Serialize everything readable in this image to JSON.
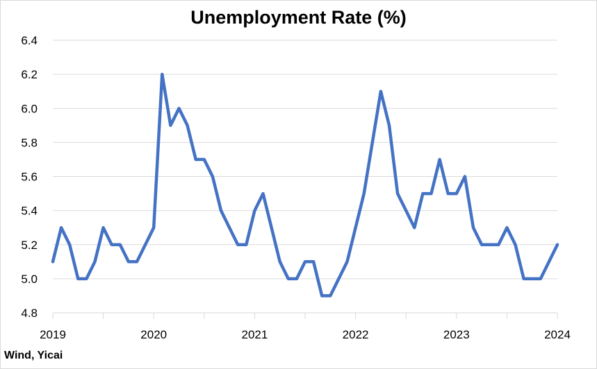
{
  "chart_data": {
    "type": "line",
    "title": "Unemployment Rate (%)",
    "source": "Wind, Yicai",
    "ylim": [
      4.8,
      6.4
    ],
    "yticks": [
      "4.8",
      "5.0",
      "5.2",
      "5.4",
      "5.6",
      "5.8",
      "6.0",
      "6.2",
      "6.4"
    ],
    "xticks": [
      "2019",
      "2020",
      "2021",
      "2022",
      "2023",
      "2024"
    ],
    "grid": "horizontal",
    "series": [
      {
        "color": "#4472c4",
        "x": [
          "2019-01",
          "2019-02",
          "2019-03",
          "2019-04",
          "2019-05",
          "2019-06",
          "2019-07",
          "2019-08",
          "2019-09",
          "2019-10",
          "2019-11",
          "2019-12",
          "2020-01",
          "2020-02",
          "2020-03",
          "2020-04",
          "2020-05",
          "2020-06",
          "2020-07",
          "2020-08",
          "2020-09",
          "2020-10",
          "2020-11",
          "2020-12",
          "2021-01",
          "2021-02",
          "2021-03",
          "2021-04",
          "2021-05",
          "2021-06",
          "2021-07",
          "2021-08",
          "2021-09",
          "2021-10",
          "2021-11",
          "2021-12",
          "2022-01",
          "2022-02",
          "2022-03",
          "2022-04",
          "2022-05",
          "2022-06",
          "2022-07",
          "2022-08",
          "2022-09",
          "2022-10",
          "2022-11",
          "2022-12",
          "2023-01",
          "2023-02",
          "2023-03",
          "2023-04",
          "2023-05",
          "2023-06",
          "2023-07",
          "2023-08",
          "2023-09",
          "2023-10",
          "2023-11",
          "2023-12",
          "2024-01"
        ],
        "values": [
          5.1,
          5.3,
          5.2,
          5.0,
          5.0,
          5.1,
          5.3,
          5.2,
          5.2,
          5.1,
          5.1,
          5.2,
          5.3,
          6.2,
          5.9,
          6.0,
          5.9,
          5.7,
          5.7,
          5.6,
          5.4,
          5.3,
          5.2,
          5.2,
          5.4,
          5.5,
          5.3,
          5.1,
          5.0,
          5.0,
          5.1,
          5.1,
          4.9,
          4.9,
          5.0,
          5.1,
          5.3,
          5.5,
          5.8,
          6.1,
          5.9,
          5.5,
          5.4,
          5.3,
          5.5,
          5.5,
          5.7,
          5.5,
          5.5,
          5.6,
          5.3,
          5.2,
          5.2,
          5.2,
          5.3,
          5.2,
          5.0,
          5.0,
          5.0,
          5.1,
          5.2
        ]
      }
    ]
  }
}
